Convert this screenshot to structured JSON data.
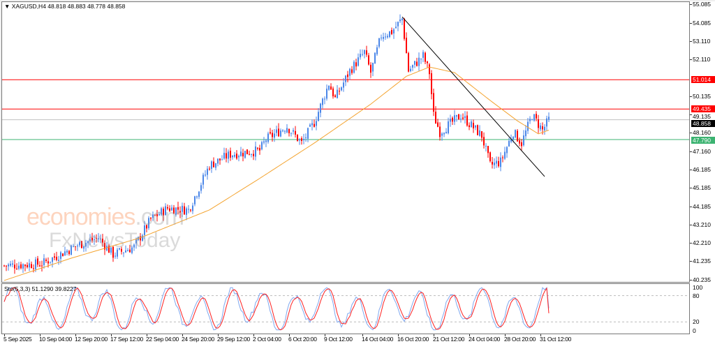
{
  "header": {
    "symbol": "XAGUSD,H4",
    "ohlc": "48.818 48.883 48.778 48.858"
  },
  "watermark": {
    "part1": "economies",
    "part2": ".com",
    "line2": "FxNewsToday"
  },
  "indicator": {
    "label": "Sto(5,3,3) 51.1290 39.8227",
    "levels": [
      "100",
      "80",
      "20",
      "0"
    ]
  },
  "price_axis": {
    "ticks": [
      "55.085",
      "54.085",
      "53.110",
      "52.110",
      "50.135",
      "49.135",
      "48.160",
      "47.160",
      "46.185",
      "45.185",
      "44.185",
      "43.210",
      "42.210",
      "41.235",
      "40.235"
    ]
  },
  "price_lines": [
    {
      "price": 51.014,
      "label": "51.014",
      "color": "#ff0000"
    },
    {
      "price": 49.435,
      "label": "49.435",
      "color": "#ff0000"
    },
    {
      "price": 48.858,
      "label": "48.858",
      "color": "#000000",
      "line": "#c0c0c0"
    },
    {
      "price": 47.79,
      "label": "47.790",
      "color": "#3cb371"
    }
  ],
  "date_axis": [
    {
      "i": 0,
      "label": "5 Sep 2025"
    },
    {
      "i": 17,
      "label": "10 Sep 04:00"
    },
    {
      "i": 34,
      "label": "12 Sep 20:00"
    },
    {
      "i": 51,
      "label": "17 Sep 12:00"
    },
    {
      "i": 68,
      "label": "22 Sep 04:00"
    },
    {
      "i": 85,
      "label": "24 Sep 20:00"
    },
    {
      "i": 102,
      "label": "29 Sep 12:00"
    },
    {
      "i": 119,
      "label": "2 Oct 04:00"
    },
    {
      "i": 136,
      "label": "6 Oct 20:00"
    },
    {
      "i": 153,
      "label": "9 Oct 12:00"
    },
    {
      "i": 171,
      "label": "14 Oct 04:00"
    },
    {
      "i": 188,
      "label": "16 Oct 20:00"
    },
    {
      "i": 205,
      "label": "21 Oct 12:00"
    },
    {
      "i": 222,
      "label": "24 Oct 04:00"
    },
    {
      "i": 239,
      "label": "28 Oct 20:00"
    },
    {
      "i": 256,
      "label": "31 Oct 12:00"
    }
  ],
  "chart_data": {
    "type": "candlestick",
    "price_range": [
      40.235,
      55.085
    ],
    "close_waypoints": [
      [
        0,
        41.0
      ],
      [
        18,
        41.1
      ],
      [
        35,
        42.1
      ],
      [
        45,
        42.5
      ],
      [
        52,
        41.6
      ],
      [
        62,
        42.0
      ],
      [
        70,
        43.5
      ],
      [
        78,
        44.1
      ],
      [
        88,
        44.0
      ],
      [
        98,
        46.4
      ],
      [
        108,
        47.0
      ],
      [
        122,
        47.2
      ],
      [
        125,
        47.8
      ],
      [
        135,
        48.5
      ],
      [
        142,
        47.6
      ],
      [
        148,
        48.7
      ],
      [
        155,
        50.8
      ],
      [
        158,
        50.0
      ],
      [
        165,
        51.5
      ],
      [
        172,
        52.5
      ],
      [
        175,
        51.4
      ],
      [
        180,
        53.4
      ],
      [
        185,
        53.6
      ],
      [
        190,
        54.3
      ],
      [
        193,
        51.5
      ],
      [
        200,
        52.3
      ],
      [
        203,
        51.4
      ],
      [
        205,
        49.1
      ],
      [
        208,
        48.2
      ],
      [
        218,
        49.1
      ],
      [
        228,
        48.0
      ],
      [
        232,
        46.4
      ],
      [
        237,
        46.6
      ],
      [
        243,
        48.2
      ],
      [
        247,
        47.6
      ],
      [
        252,
        49.1
      ],
      [
        257,
        48.3
      ],
      [
        260,
        48.858
      ]
    ],
    "ma_waypoints": [
      [
        0,
        40.2
      ],
      [
        32,
        41.4
      ],
      [
        65,
        42.5
      ],
      [
        98,
        44.0
      ],
      [
        122,
        45.7
      ],
      [
        148,
        47.6
      ],
      [
        175,
        49.7
      ],
      [
        192,
        51.2
      ],
      [
        203,
        51.7
      ],
      [
        215,
        51.4
      ],
      [
        232,
        49.9
      ],
      [
        245,
        48.8
      ],
      [
        255,
        48.1
      ],
      [
        260,
        48.3
      ]
    ],
    "trendline": [
      [
        190,
        54.4
      ],
      [
        258,
        45.8
      ]
    ],
    "colors": {
      "bull": "#4a86e8",
      "bear": "#ff0000",
      "ma": "#f4a430",
      "k": "#7fa7ef",
      "d": "#ff2020"
    }
  }
}
